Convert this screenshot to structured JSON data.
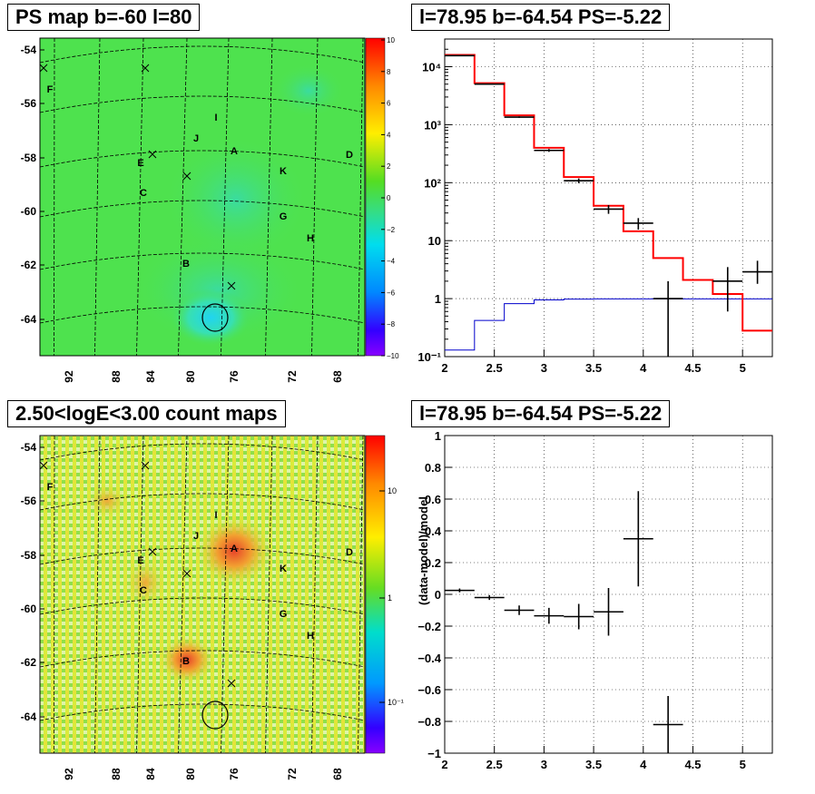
{
  "titles": {
    "ps_map": "PS map b=-60 l=80",
    "count_map": "2.50<logE<3.00 count maps",
    "spectrum": "l=78.95 b=-64.54 PS=-5.22",
    "residual": "l=78.95 b=-64.54 PS=-5.22"
  },
  "map_axes": {
    "lat_ticks": [
      "-54",
      "-56",
      "-58",
      "-60",
      "-62",
      "-64"
    ],
    "lon_ticks": [
      "92",
      "88",
      "84",
      "80",
      "76",
      "72",
      "68"
    ]
  },
  "source_labels": [
    "A",
    "B",
    "C",
    "D",
    "E",
    "F",
    "G",
    "H",
    "I",
    "J",
    "K"
  ],
  "ps_colorbar": {
    "range": [
      -10,
      10
    ],
    "ticks": [
      "10",
      "8",
      "6",
      "4",
      "2",
      "0",
      "−2",
      "−4",
      "−6",
      "−8",
      "−10"
    ]
  },
  "count_colorbar": {
    "scale": "log",
    "ticks": [
      "10",
      "1",
      "10⁻¹"
    ]
  },
  "colors": {
    "map_bg": "#4ee24e",
    "hotspot": "#e8432a",
    "model": "#ff0000",
    "background_model": "#0000cc",
    "data": "#000000"
  },
  "chart_data": [
    {
      "type": "heatmap",
      "title": "PS map b=-60 l=80",
      "value_range": [
        -10,
        10
      ],
      "markers": [
        "A",
        "B",
        "C",
        "D",
        "E",
        "F",
        "G",
        "H",
        "I",
        "J",
        "K"
      ]
    },
    {
      "type": "heatmap",
      "title": "2.50<logE<3.00 count maps",
      "scale": "log",
      "markers": [
        "A",
        "B",
        "C",
        "D",
        "E",
        "F",
        "G",
        "H",
        "I",
        "J",
        "K"
      ]
    },
    {
      "type": "line",
      "title": "l=78.95 b=-64.54 PS=-5.22",
      "xlim": [
        2,
        5.3
      ],
      "ylim": [
        0.1,
        30000
      ],
      "yscale": "log",
      "x_ticks": [
        "2",
        "2.5",
        "3",
        "3.5",
        "4",
        "4.5",
        "5"
      ],
      "y_ticks": [
        "10⁻¹",
        "1",
        "10",
        "10²",
        "10³",
        "10⁴"
      ],
      "bin_edges": [
        2.0,
        2.3,
        2.6,
        2.9,
        3.2,
        3.5,
        3.8,
        4.1,
        4.4,
        4.7,
        5.0,
        5.3
      ],
      "model": [
        16000,
        5200,
        1450,
        400,
        125,
        40,
        14.5,
        5.0,
        2.1,
        1.2,
        0.28
      ],
      "background_model": [
        0.13,
        0.42,
        0.82,
        0.95,
        0.98,
        0.99,
        0.99,
        0.99,
        0.99,
        0.99,
        0.99
      ],
      "data": [
        {
          "x": 2.15,
          "y": 15500,
          "yerr": 150
        },
        {
          "x": 2.45,
          "y": 5000,
          "yerr": 80
        },
        {
          "x": 2.75,
          "y": 1350,
          "yerr": 40
        },
        {
          "x": 3.05,
          "y": 360,
          "yerr": 20
        },
        {
          "x": 3.35,
          "y": 108,
          "yerr": 10
        },
        {
          "x": 3.65,
          "y": 35,
          "yerr": 6
        },
        {
          "x": 3.95,
          "y": 20,
          "yerr": 4.5
        },
        {
          "x": 4.25,
          "y": 1.0,
          "yerr_lo": 0.9,
          "yerr_hi": 1.0
        },
        {
          "x": 4.85,
          "y": 2.0,
          "yerr_lo": 1.4,
          "yerr_hi": 1.5
        },
        {
          "x": 5.15,
          "y": 2.9,
          "yerr_lo": 1.1,
          "yerr_hi": 1.6
        }
      ]
    },
    {
      "type": "scatter",
      "title": "l=78.95 b=-64.54 PS=-5.22",
      "ylabel": "(data-model)/model",
      "xlim": [
        2,
        5.3
      ],
      "ylim": [
        -1,
        1
      ],
      "x_ticks": [
        "2",
        "2.5",
        "3",
        "3.5",
        "4",
        "4.5",
        "5"
      ],
      "y_ticks": [
        "1",
        "0.8",
        "0.6",
        "0.4",
        "0.2",
        "0",
        "−0.2",
        "−0.4",
        "−0.6",
        "−0.8",
        "−1"
      ],
      "points": [
        {
          "x": 2.15,
          "y": 0.025,
          "yerr": 0.012
        },
        {
          "x": 2.45,
          "y": -0.02,
          "yerr": 0.015
        },
        {
          "x": 2.75,
          "y": -0.1,
          "yerr": 0.03
        },
        {
          "x": 3.05,
          "y": -0.135,
          "yerr": 0.05
        },
        {
          "x": 3.35,
          "y": -0.14,
          "yerr": 0.08
        },
        {
          "x": 3.65,
          "y": -0.11,
          "yerr": 0.15
        },
        {
          "x": 3.95,
          "y": 0.35,
          "yerr": 0.3
        },
        {
          "x": 4.25,
          "y": -0.82,
          "yerr": 0.18
        }
      ]
    }
  ]
}
